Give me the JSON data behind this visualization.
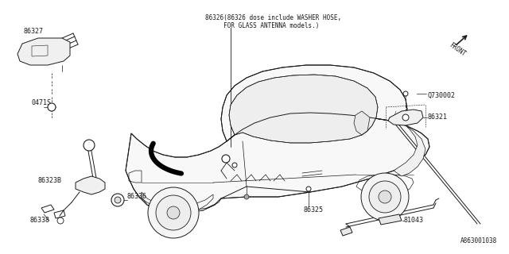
{
  "bg_color": "#ffffff",
  "line_color": "#1a1a1a",
  "diagram_id": "A863001038",
  "note_line1": "86326(86326 dose include WASHER HOSE,",
  "note_line2": "     FOR GLASS ANTENNA models.)",
  "label_86327": "86327",
  "label_0471S": "0471S",
  "label_86325": "86325",
  "label_Q730002": "Q730002",
  "label_86321": "86321",
  "label_86323B": "86323B",
  "label_86336": "86336",
  "label_86338": "86338",
  "label_81043": "81043",
  "label_FRONT": "FRONT",
  "fs_note": 5.5,
  "fs_label": 6.0,
  "fs_id": 5.5
}
